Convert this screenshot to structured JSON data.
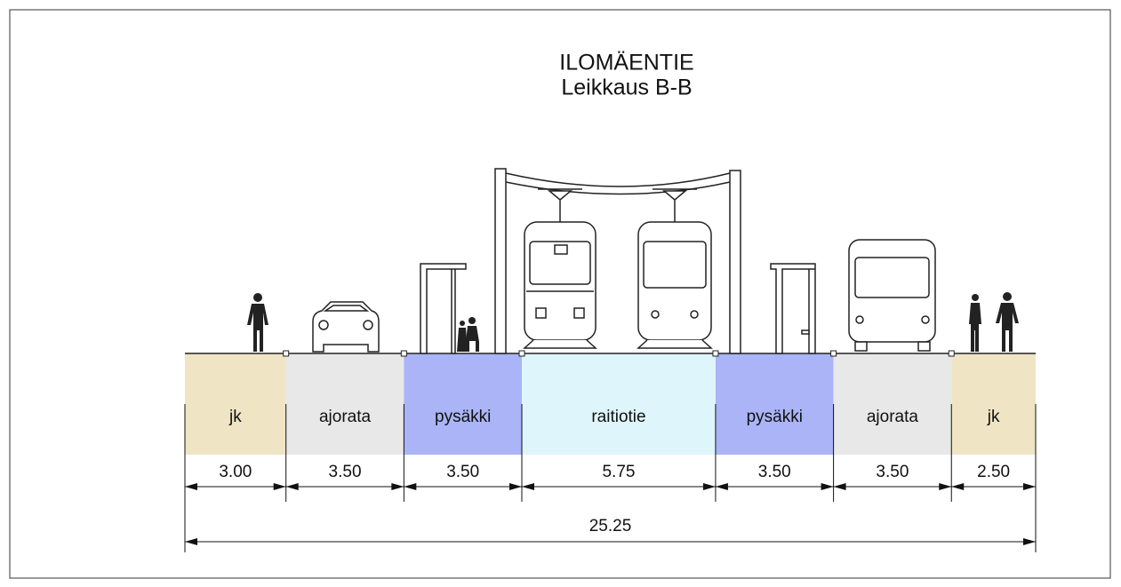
{
  "header": {
    "title": "ILOMÄENTIE",
    "subtitle": "Leikkaus B-B"
  },
  "lanes": [
    {
      "label": "jk",
      "width": "3.00",
      "color": "#efe4c4"
    },
    {
      "label": "ajorata",
      "width": "3.50",
      "color": "#e8e8e8"
    },
    {
      "label": "pysäkki",
      "width": "3.50",
      "color": "#aab4f7"
    },
    {
      "label": "raitiotie",
      "width": "5.75",
      "color": "#dff5fc"
    },
    {
      "label": "pysäkki",
      "width": "3.50",
      "color": "#aab4f7"
    },
    {
      "label": "ajorata",
      "width": "3.50",
      "color": "#e8e8e8"
    },
    {
      "label": "jk",
      "width": "2.50",
      "color": "#efe4c4"
    }
  ],
  "total": "25.25"
}
